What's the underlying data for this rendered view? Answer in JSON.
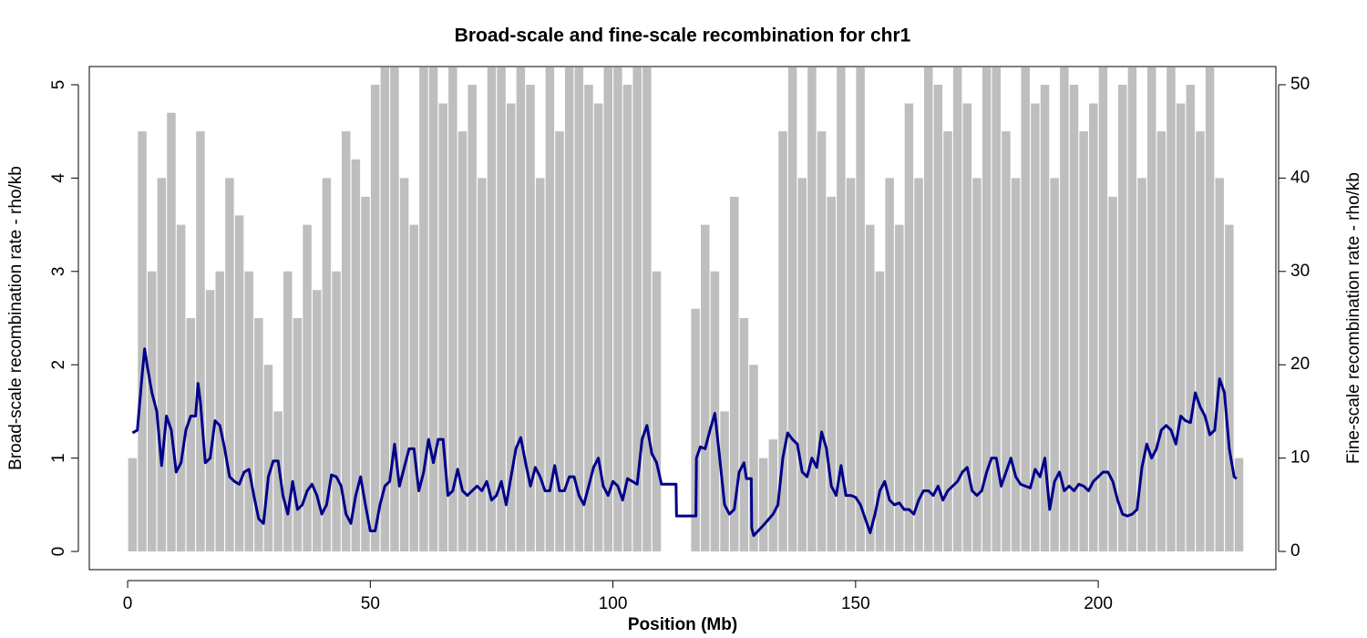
{
  "chart_data": {
    "type": "line",
    "title": "Broad-scale and fine-scale recombination for chr1",
    "x_label": "Position (Mb)",
    "y_label": "Broad-scale recombination rate - rho/kb",
    "y2_label": "Fine-scale recombination rate - rho/kb",
    "xlim": [
      -7.9,
      236.6
    ],
    "xticks": [
      0,
      50,
      100,
      150,
      200
    ],
    "ylim": [
      -0.195,
      5.195
    ],
    "yticks": [
      0,
      1,
      2,
      3,
      4,
      5
    ],
    "y2lim": [
      -1.95,
      51.95
    ],
    "y2ticks": [
      0,
      10,
      20,
      30,
      40,
      50
    ],
    "series": [
      {
        "color": "#bebebe",
        "axis": "y2",
        "style": "spikes",
        "x": [
          1,
          3,
          5,
          7,
          9,
          11,
          13,
          15,
          17,
          19,
          21,
          23,
          25,
          27,
          29,
          31,
          33,
          35,
          37,
          39,
          41,
          43,
          45,
          47,
          49,
          51,
          53,
          55,
          57,
          59,
          61,
          63,
          65,
          67,
          69,
          71,
          73,
          75,
          77,
          79,
          81,
          83,
          85,
          87,
          89,
          91,
          93,
          95,
          97,
          99,
          101,
          103,
          105,
          107,
          109,
          111,
          113,
          115,
          117,
          119,
          121,
          123,
          125,
          127,
          129,
          131,
          133,
          135,
          137,
          139,
          141,
          143,
          145,
          147,
          149,
          151,
          153,
          155,
          157,
          159,
          161,
          163,
          165,
          167,
          169,
          171,
          173,
          175,
          177,
          179,
          181,
          183,
          185,
          187,
          189,
          191,
          193,
          195,
          197,
          199,
          201,
          203,
          205,
          207,
          209,
          211,
          213,
          215,
          217,
          219,
          221,
          223,
          225,
          227,
          229
        ],
        "values": [
          10,
          45,
          30,
          40,
          47,
          35,
          25,
          45,
          28,
          30,
          40,
          36,
          30,
          25,
          20,
          15,
          30,
          25,
          35,
          28,
          40,
          30,
          45,
          42,
          38,
          50,
          52,
          55,
          40,
          35,
          55,
          52,
          48,
          52,
          45,
          50,
          40,
          52,
          55,
          48,
          52,
          50,
          40,
          52,
          45,
          55,
          52,
          50,
          48,
          52,
          55,
          50,
          52,
          55,
          30,
          0,
          0,
          0,
          26,
          35,
          30,
          15,
          38,
          25,
          20,
          10,
          12,
          45,
          52,
          40,
          52,
          45,
          38,
          52,
          40,
          52,
          35,
          30,
          40,
          35,
          48,
          40,
          52,
          50,
          45,
          52,
          48,
          40,
          52,
          55,
          45,
          40,
          52,
          48,
          50,
          40,
          52,
          50,
          45,
          48,
          52,
          38,
          50,
          52,
          40,
          55,
          45,
          52,
          48,
          50,
          45,
          52,
          40,
          35,
          10
        ]
      },
      {
        "color": "#00008b",
        "x": [
          1,
          2,
          3,
          3.5,
          4,
          5,
          6,
          7,
          8,
          9,
          10,
          11,
          12,
          13,
          14,
          14.5,
          15,
          16,
          17,
          18,
          19,
          20,
          21,
          22,
          23,
          24,
          25,
          26,
          27,
          28,
          29,
          30,
          31,
          32,
          33,
          34,
          35,
          36,
          37,
          38,
          39,
          40,
          41,
          42,
          43,
          44,
          45,
          46,
          47,
          48,
          49,
          50,
          51,
          52,
          53,
          54,
          55,
          56,
          57,
          58,
          59,
          60,
          61,
          62,
          63,
          64,
          65,
          66,
          67,
          68,
          69,
          70,
          71,
          72,
          73,
          74,
          75,
          76,
          77,
          78,
          79,
          80,
          81,
          82,
          83,
          84,
          85,
          86,
          87,
          88,
          89,
          90,
          91,
          92,
          93,
          94,
          95,
          96,
          97,
          98,
          99,
          100,
          101,
          102,
          103,
          104,
          105,
          106,
          107,
          108,
          109,
          110,
          113,
          113.1,
          117.1,
          117.2,
          118,
          119,
          120,
          121,
          122,
          123,
          124,
          125,
          126,
          127,
          127.5,
          128.5,
          128.6,
          129,
          131,
          133,
          134,
          135,
          136,
          137,
          138,
          139,
          140,
          141,
          142,
          143,
          144,
          145,
          146,
          147,
          148,
          149,
          150,
          151,
          152,
          153,
          154,
          155,
          156,
          157,
          158,
          159,
          160,
          161,
          162,
          163,
          164,
          165,
          166,
          167,
          168,
          169,
          170,
          171,
          172,
          173,
          174,
          175,
          176,
          177,
          178,
          179,
          180,
          181,
          182,
          183,
          184,
          185,
          186,
          187,
          188,
          189,
          190,
          191,
          192,
          193,
          194,
          195,
          196,
          197,
          198,
          199,
          200,
          201,
          202,
          203,
          204,
          205,
          206,
          207,
          208,
          209,
          210,
          211,
          212,
          213,
          214,
          215,
          216,
          217,
          218,
          219,
          220,
          221,
          222,
          223,
          224,
          225,
          226,
          227,
          228,
          228.5
        ],
        "values": [
          1.27,
          1.3,
          1.9,
          2.17,
          2.0,
          1.7,
          1.5,
          0.92,
          1.45,
          1.3,
          0.85,
          0.95,
          1.3,
          1.45,
          1.45,
          1.8,
          1.6,
          0.95,
          1.0,
          1.4,
          1.35,
          1.1,
          0.8,
          0.75,
          0.72,
          0.85,
          0.88,
          0.6,
          0.35,
          0.3,
          0.8,
          0.97,
          0.97,
          0.6,
          0.4,
          0.75,
          0.45,
          0.5,
          0.65,
          0.72,
          0.6,
          0.4,
          0.5,
          0.82,
          0.8,
          0.7,
          0.4,
          0.3,
          0.6,
          0.8,
          0.5,
          0.22,
          0.22,
          0.5,
          0.7,
          0.75,
          1.15,
          0.7,
          0.9,
          1.1,
          1.1,
          0.65,
          0.85,
          1.2,
          0.95,
          1.2,
          1.2,
          0.6,
          0.65,
          0.88,
          0.65,
          0.6,
          0.65,
          0.7,
          0.65,
          0.75,
          0.55,
          0.6,
          0.75,
          0.5,
          0.8,
          1.1,
          1.22,
          0.95,
          0.7,
          0.9,
          0.8,
          0.65,
          0.65,
          0.92,
          0.65,
          0.65,
          0.8,
          0.8,
          0.6,
          0.5,
          0.7,
          0.9,
          1.0,
          0.7,
          0.6,
          0.75,
          0.7,
          0.55,
          0.78,
          0.75,
          0.72,
          1.2,
          1.35,
          1.05,
          0.95,
          0.72,
          0.72,
          0.38,
          0.38,
          1.0,
          1.12,
          1.1,
          1.3,
          1.48,
          1.0,
          0.5,
          0.4,
          0.45,
          0.85,
          0.95,
          0.78,
          0.78,
          0.25,
          0.17,
          0.28,
          0.4,
          0.5,
          1.0,
          1.27,
          1.2,
          1.15,
          0.85,
          0.8,
          1.0,
          0.9,
          1.28,
          1.1,
          0.7,
          0.6,
          0.92,
          0.6,
          0.6,
          0.58,
          0.5,
          0.35,
          0.2,
          0.4,
          0.65,
          0.75,
          0.55,
          0.5,
          0.52,
          0.45,
          0.45,
          0.4,
          0.55,
          0.65,
          0.65,
          0.6,
          0.7,
          0.55,
          0.65,
          0.7,
          0.75,
          0.85,
          0.9,
          0.65,
          0.6,
          0.65,
          0.85,
          1.0,
          1.0,
          0.7,
          0.85,
          1.0,
          0.8,
          0.72,
          0.7,
          0.68,
          0.88,
          0.8,
          1.0,
          0.45,
          0.75,
          0.85,
          0.65,
          0.7,
          0.65,
          0.72,
          0.7,
          0.65,
          0.75,
          0.8,
          0.85,
          0.85,
          0.75,
          0.55,
          0.4,
          0.38,
          0.4,
          0.45,
          0.9,
          1.15,
          1.0,
          1.1,
          1.3,
          1.35,
          1.3,
          1.15,
          1.45,
          1.4,
          1.38,
          1.7,
          1.55,
          1.45,
          1.25,
          1.3,
          1.85,
          1.7,
          1.1,
          0.8,
          0.78
        ]
      }
    ]
  }
}
